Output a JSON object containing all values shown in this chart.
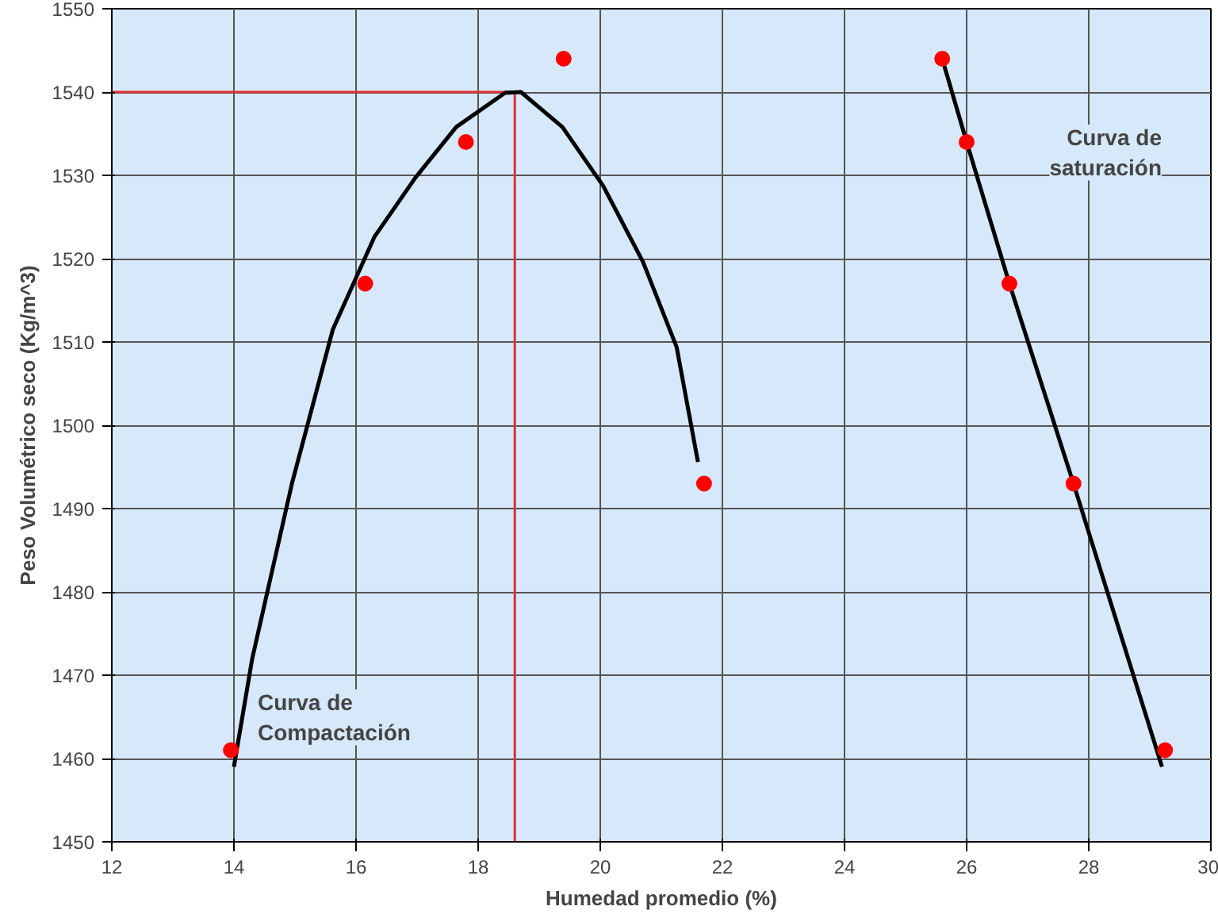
{
  "chart_data": {
    "type": "scatter",
    "xlabel": "Humedad promedio (%)",
    "ylabel": "Peso Volumétrico seco (Kg/m^3)",
    "xlim": [
      12,
      30
    ],
    "ylim": [
      1450,
      1550
    ],
    "xticks": [
      12,
      14,
      16,
      18,
      20,
      22,
      24,
      26,
      28,
      30
    ],
    "yticks": [
      1450,
      1460,
      1470,
      1480,
      1490,
      1500,
      1510,
      1520,
      1530,
      1540,
      1550
    ],
    "grid": true,
    "series": [
      {
        "color": "#ff0000",
        "marker": "circle",
        "x": [
          13.95,
          16.15,
          17.8,
          19.4,
          21.7,
          25.6,
          26.0,
          26.7,
          27.75,
          29.25
        ],
        "values": [
          1461,
          1517,
          1534,
          1544,
          1493,
          1544,
          1534,
          1517,
          1493,
          1461
        ]
      },
      {
        "type": "line",
        "color": "#000000",
        "line_style": "solid",
        "x": [
          14.0,
          14.3,
          14.95,
          15.62,
          16.3,
          16.97,
          17.64,
          18.44,
          18.7,
          19.38,
          20.05,
          20.7,
          21.25,
          21.6
        ],
        "values": [
          1459,
          1472,
          1493,
          1511.5,
          1522.6,
          1529.7,
          1535.8,
          1539.9,
          1540,
          1535.8,
          1528.7,
          1519.6,
          1509.4,
          1495.6
        ]
      },
      {
        "type": "line",
        "color": "#000000",
        "line_style": "solid",
        "x": [
          25.6,
          26.0,
          26.7,
          27.75,
          29.2
        ],
        "values": [
          1544,
          1534,
          1517,
          1493,
          1459
        ]
      }
    ],
    "ref_lines": [
      {
        "axis": "y",
        "value": 1540,
        "color": "#e03030"
      },
      {
        "axis": "x",
        "value": 18.6,
        "color": "#e03030"
      }
    ],
    "annotations": [
      "Curva de\nCompactación",
      "Curva de\nsaturación"
    ]
  }
}
